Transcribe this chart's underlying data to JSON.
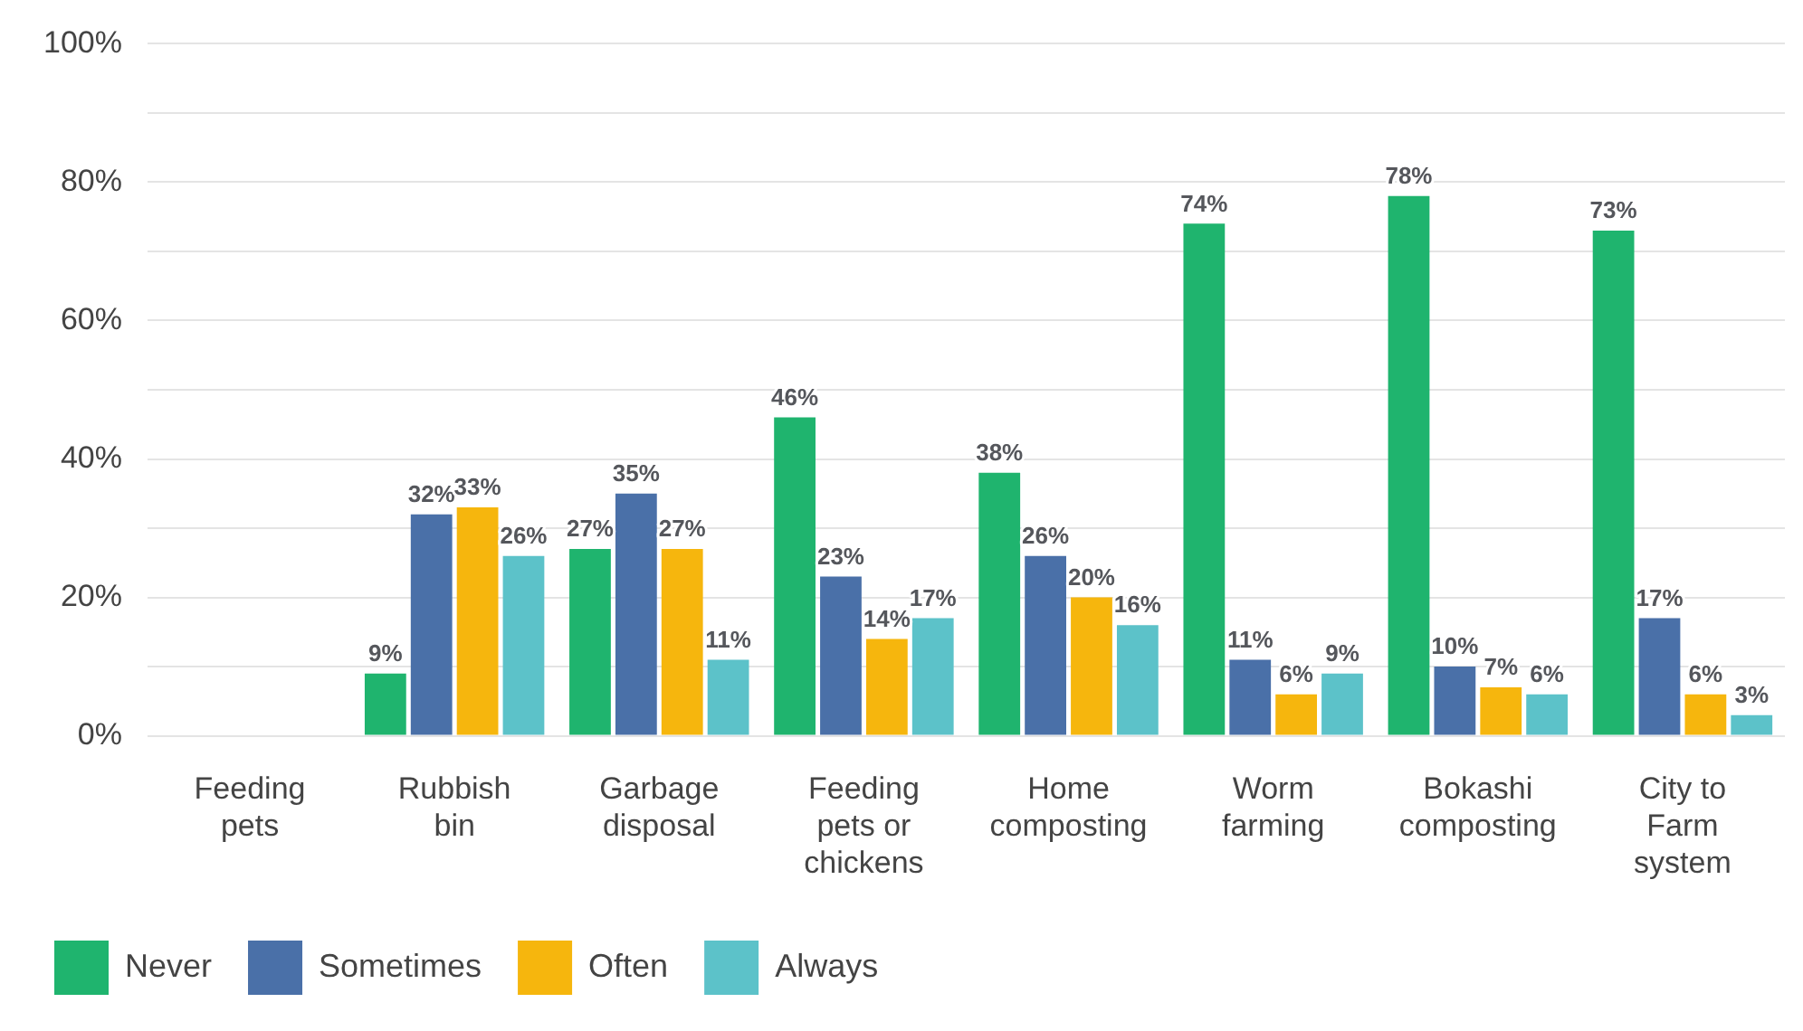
{
  "chart_data": {
    "type": "bar",
    "categories": [
      "Feeding pets",
      "Rubbish bin",
      "Garbage disposal",
      "Feeding pets or chickens",
      "Home composting",
      "Worm farming",
      "Bokashi composting",
      "City to Farm system"
    ],
    "series": [
      {
        "name": "Never",
        "color": "#1fb46e",
        "values": [
          null,
          9,
          27,
          46,
          38,
          74,
          78,
          73
        ],
        "value_labels": [
          null,
          "9%",
          "27%",
          "46%",
          "38%",
          "74%",
          "78%",
          "73%"
        ]
      },
      {
        "name": "Sometimes",
        "color": "#4a70a8",
        "values": [
          null,
          32,
          35,
          23,
          26,
          11,
          10,
          17
        ],
        "value_labels": [
          null,
          "32%",
          "35%",
          "23%",
          "26%",
          "11%",
          "10%",
          "17%"
        ]
      },
      {
        "name": "Often",
        "color": "#f6b60d",
        "values": [
          null,
          33,
          27,
          14,
          20,
          6,
          7,
          6
        ],
        "value_labels": [
          null,
          "33%",
          "27%",
          "14%",
          "20%",
          "6%",
          "7%",
          "6%"
        ]
      },
      {
        "name": "Always",
        "color": "#5cc2c9",
        "values": [
          null,
          26,
          11,
          17,
          16,
          9,
          6,
          3
        ],
        "value_labels": [
          null,
          "26%",
          "11%",
          "17%",
          "16%",
          "9%",
          "6%",
          "3%"
        ]
      }
    ],
    "ylim": [
      0,
      100
    ],
    "yticks": [
      {
        "value": 0,
        "label": "0%"
      },
      {
        "value": 10,
        "label": null
      },
      {
        "value": 20,
        "label": "20%"
      },
      {
        "value": 30,
        "label": null
      },
      {
        "value": 40,
        "label": "40%"
      },
      {
        "value": 50,
        "label": null
      },
      {
        "value": 60,
        "label": "60%"
      },
      {
        "value": 70,
        "label": null
      },
      {
        "value": 80,
        "label": "80%"
      },
      {
        "value": 90,
        "label": null
      },
      {
        "value": 100,
        "label": "100%"
      }
    ],
    "grid": "y",
    "legend": "bottom left"
  }
}
